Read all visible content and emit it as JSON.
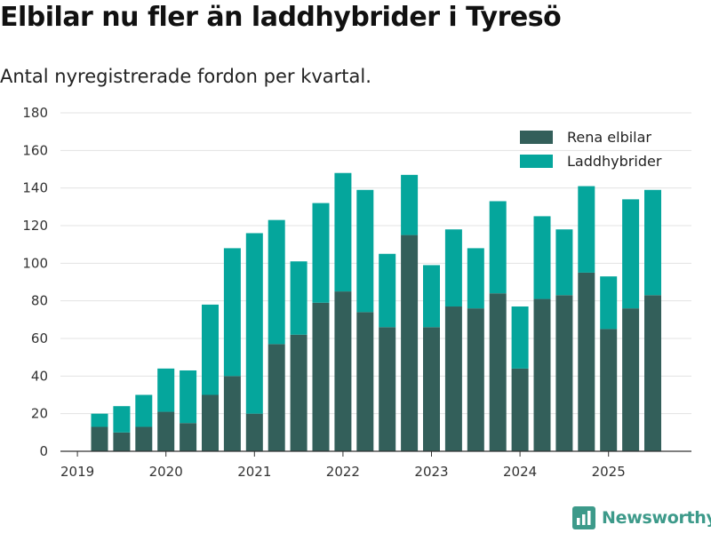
{
  "chart_data": {
    "type": "bar",
    "stacked": true,
    "title": "Elbilar nu fler än laddhybrider i Tyresö",
    "subtitle": "Antal nyregistrerade fordon per kvartal.",
    "xlabel": "",
    "ylabel": "",
    "ylim": [
      0,
      180
    ],
    "yticks": [
      0,
      20,
      40,
      60,
      80,
      100,
      120,
      140,
      160,
      180
    ],
    "grid": true,
    "legend_position": "top-right",
    "year_ticks": [
      {
        "label": "2019",
        "at_quarter_index": 0
      },
      {
        "label": "2020",
        "at_quarter_index": 4
      },
      {
        "label": "2021",
        "at_quarter_index": 8
      },
      {
        "label": "2022",
        "at_quarter_index": 12
      },
      {
        "label": "2023",
        "at_quarter_index": 16
      },
      {
        "label": "2024",
        "at_quarter_index": 20
      },
      {
        "label": "2025",
        "at_quarter_index": 24
      }
    ],
    "categories": [
      "2019 Q2",
      "2019 Q3",
      "2019 Q4",
      "2020 Q1",
      "2020 Q2",
      "2020 Q3",
      "2020 Q4",
      "2021 Q1",
      "2021 Q2",
      "2021 Q3",
      "2021 Q4",
      "2022 Q1",
      "2022 Q2",
      "2022 Q3",
      "2022 Q4",
      "2023 Q1",
      "2023 Q2",
      "2023 Q3",
      "2023 Q4",
      "2024 Q1",
      "2024 Q2",
      "2024 Q3",
      "2024 Q4",
      "2025 Q1",
      "2025 Q2",
      "2025 Q3"
    ],
    "series": [
      {
        "name": "Rena elbilar",
        "color": "#335f5a",
        "values": [
          13,
          10,
          13,
          21,
          15,
          30,
          40,
          20,
          57,
          62,
          79,
          85,
          74,
          66,
          115,
          66,
          77,
          76,
          84,
          44,
          81,
          83,
          95,
          65,
          76,
          83
        ]
      },
      {
        "name": "Laddhybrider",
        "color": "#05a69c",
        "values": [
          7,
          14,
          17,
          23,
          28,
          48,
          68,
          96,
          66,
          39,
          53,
          63,
          65,
          39,
          32,
          33,
          41,
          32,
          49,
          33,
          44,
          35,
          46,
          28,
          58,
          56
        ]
      }
    ]
  },
  "brand": {
    "name": "Newsworthy",
    "logo_icon": "newsworthy-bar-chart-logo-icon",
    "color": "#3d9a8a"
  }
}
